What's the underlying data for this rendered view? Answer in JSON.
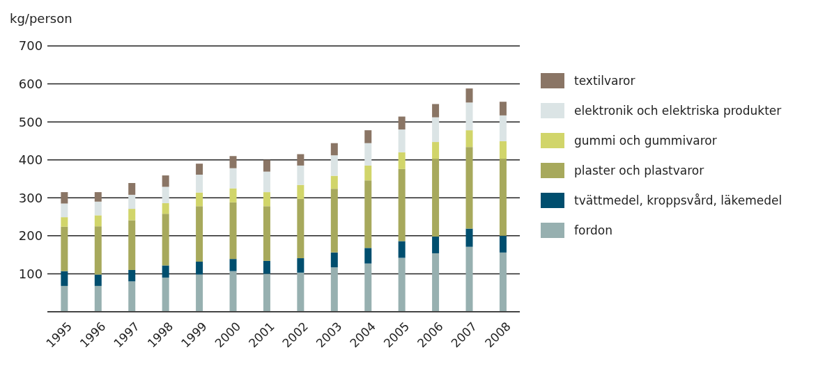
{
  "chart_data": {
    "type": "bar",
    "stacked": true,
    "ylabel": "kg/person",
    "categories": [
      "1995",
      "1996",
      "1997",
      "1998",
      "1999",
      "2000",
      "2001",
      "2002",
      "2003",
      "2004",
      "2005",
      "2006",
      "2007",
      "2008"
    ],
    "series": [
      {
        "name": "fordon",
        "color": "#97b0b0",
        "values": [
          68,
          68,
          80,
          90,
          98,
          107,
          100,
          103,
          117,
          127,
          142,
          154,
          171,
          156
        ]
      },
      {
        "name": "tvättmedel, kroppsvård, läkemedel",
        "color": "#004e6e",
        "values": [
          39,
          30,
          30,
          32,
          34,
          32,
          34,
          38,
          39,
          41,
          44,
          44,
          48,
          44
        ]
      },
      {
        "name": "plaster och plastvaror",
        "color": "#a7a95c",
        "values": [
          117,
          127,
          131,
          136,
          146,
          149,
          144,
          156,
          168,
          178,
          190,
          205,
          215,
          203
        ]
      },
      {
        "name": "gummi och gummivaror",
        "color": "#d1d56a",
        "values": [
          25,
          29,
          30,
          28,
          36,
          37,
          37,
          37,
          34,
          39,
          44,
          44,
          44,
          46
        ]
      },
      {
        "name": "elektronik och elektriska produkter",
        "color": "#dbe4e5",
        "values": [
          36,
          36,
          37,
          43,
          47,
          53,
          54,
          51,
          54,
          59,
          60,
          65,
          73,
          68
        ]
      },
      {
        "name": "textilvaror",
        "color": "#8a7565",
        "values": [
          30,
          25,
          31,
          30,
          29,
          32,
          31,
          30,
          32,
          34,
          34,
          35,
          37,
          36
        ]
      }
    ],
    "ylim": [
      0,
      700
    ],
    "yticks": [
      {
        "value": 0,
        "label": null
      },
      100,
      200,
      300,
      400,
      500,
      600,
      700
    ],
    "grid": "y",
    "legend": "right"
  }
}
